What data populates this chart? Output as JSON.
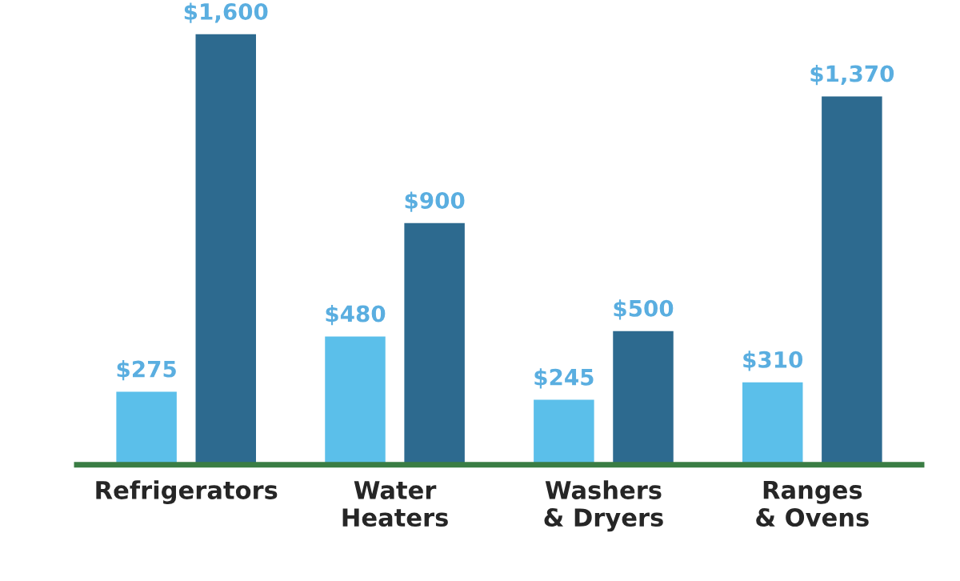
{
  "chart_data": {
    "type": "bar",
    "categories": [
      "Refrigerators",
      "Water\nHeaters",
      "Washers\n& Dryers",
      "Ranges\n& Ovens"
    ],
    "series": [
      {
        "color": "#5bbfea",
        "values": [
          275,
          480,
          245,
          310
        ],
        "value_labels": [
          "$275",
          "$480",
          "$245",
          "$310"
        ]
      },
      {
        "color": "#2d6a8f",
        "values": [
          1600,
          900,
          500,
          1370
        ],
        "value_labels": [
          "$1,600",
          "$900",
          "$500",
          "$1,370"
        ]
      }
    ],
    "tick_labels": "x",
    "grid": false,
    "legend": false
  }
}
